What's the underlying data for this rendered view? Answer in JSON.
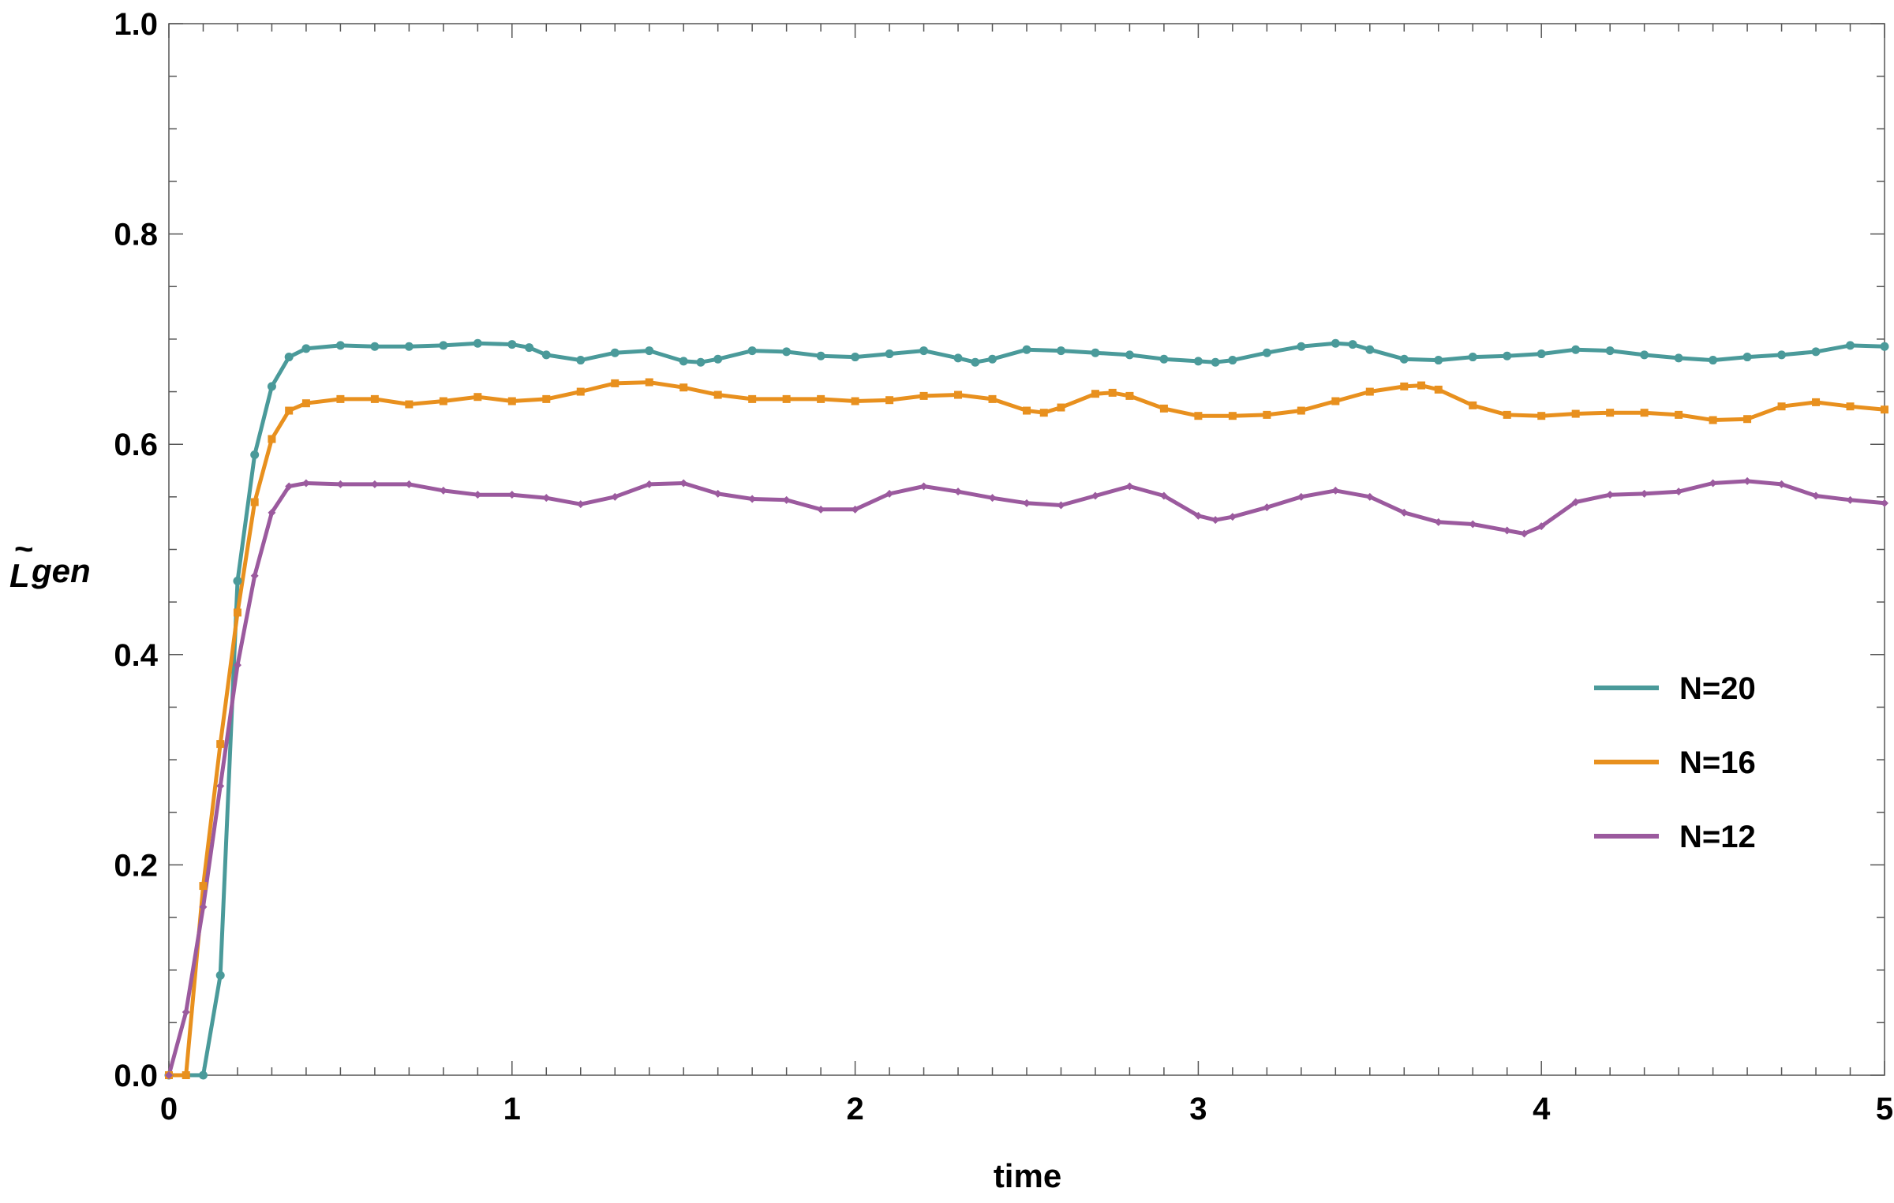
{
  "chart_data": {
    "type": "line",
    "xlabel": "time",
    "ylabel_main": "L",
    "ylabel_accent": "~",
    "ylabel_sub": "gen",
    "xlim": [
      0,
      5
    ],
    "ylim": [
      0,
      1
    ],
    "x_ticks": [
      0,
      1,
      2,
      3,
      4,
      5
    ],
    "x_tick_labels": [
      "0",
      "1",
      "2",
      "3",
      "4",
      "5"
    ],
    "y_ticks": [
      0,
      0.2,
      0.4,
      0.6,
      0.8,
      1.0
    ],
    "y_tick_labels": [
      "0.0",
      "0.2",
      "0.4",
      "0.6",
      "0.8",
      "1.0"
    ],
    "legend_position": "right",
    "series": [
      {
        "name": "N=20",
        "color": "#4a9a9a",
        "marker": "circle",
        "x": [
          0,
          0.1,
          0.15,
          0.2,
          0.25,
          0.3,
          0.35,
          0.4,
          0.5,
          0.6,
          0.7,
          0.8,
          0.9,
          1.0,
          1.05,
          1.1,
          1.2,
          1.3,
          1.4,
          1.5,
          1.55,
          1.6,
          1.7,
          1.8,
          1.9,
          2.0,
          2.1,
          2.2,
          2.3,
          2.35,
          2.4,
          2.5,
          2.6,
          2.7,
          2.8,
          2.9,
          3.0,
          3.05,
          3.1,
          3.2,
          3.3,
          3.4,
          3.45,
          3.5,
          3.6,
          3.7,
          3.8,
          3.9,
          4.0,
          4.1,
          4.2,
          4.3,
          4.4,
          4.5,
          4.6,
          4.7,
          4.8,
          4.9,
          5.0
        ],
        "y": [
          0.0,
          0.0,
          0.095,
          0.47,
          0.59,
          0.655,
          0.683,
          0.691,
          0.694,
          0.693,
          0.693,
          0.694,
          0.696,
          0.695,
          0.692,
          0.685,
          0.68,
          0.687,
          0.689,
          0.679,
          0.678,
          0.681,
          0.689,
          0.688,
          0.684,
          0.683,
          0.686,
          0.689,
          0.682,
          0.678,
          0.681,
          0.69,
          0.689,
          0.687,
          0.685,
          0.681,
          0.679,
          0.678,
          0.68,
          0.687,
          0.693,
          0.696,
          0.695,
          0.69,
          0.681,
          0.68,
          0.683,
          0.684,
          0.686,
          0.69,
          0.689,
          0.685,
          0.682,
          0.68,
          0.683,
          0.685,
          0.688,
          0.694,
          0.693
        ]
      },
      {
        "name": "N=16",
        "color": "#e8901e",
        "marker": "square",
        "x": [
          0,
          0.05,
          0.1,
          0.15,
          0.2,
          0.25,
          0.3,
          0.35,
          0.4,
          0.5,
          0.6,
          0.7,
          0.8,
          0.9,
          1.0,
          1.1,
          1.2,
          1.3,
          1.4,
          1.5,
          1.6,
          1.7,
          1.8,
          1.9,
          2.0,
          2.1,
          2.2,
          2.3,
          2.4,
          2.5,
          2.55,
          2.6,
          2.7,
          2.75,
          2.8,
          2.9,
          3.0,
          3.1,
          3.2,
          3.3,
          3.4,
          3.5,
          3.6,
          3.65,
          3.7,
          3.8,
          3.9,
          4.0,
          4.1,
          4.2,
          4.3,
          4.4,
          4.5,
          4.6,
          4.7,
          4.8,
          4.9,
          5.0
        ],
        "y": [
          0.0,
          0.0,
          0.18,
          0.315,
          0.44,
          0.545,
          0.605,
          0.632,
          0.639,
          0.643,
          0.643,
          0.638,
          0.641,
          0.645,
          0.641,
          0.643,
          0.65,
          0.658,
          0.659,
          0.654,
          0.647,
          0.643,
          0.643,
          0.643,
          0.641,
          0.642,
          0.646,
          0.647,
          0.643,
          0.632,
          0.63,
          0.635,
          0.648,
          0.649,
          0.646,
          0.634,
          0.627,
          0.627,
          0.628,
          0.632,
          0.641,
          0.65,
          0.655,
          0.656,
          0.652,
          0.637,
          0.628,
          0.627,
          0.629,
          0.63,
          0.63,
          0.628,
          0.623,
          0.624,
          0.636,
          0.64,
          0.636,
          0.633
        ]
      },
      {
        "name": "N=12",
        "color": "#9b5a9e",
        "marker": "diamond",
        "x": [
          0,
          0.05,
          0.1,
          0.15,
          0.2,
          0.25,
          0.3,
          0.35,
          0.4,
          0.5,
          0.6,
          0.7,
          0.8,
          0.9,
          1.0,
          1.1,
          1.2,
          1.3,
          1.4,
          1.5,
          1.6,
          1.7,
          1.8,
          1.9,
          2.0,
          2.1,
          2.2,
          2.3,
          2.4,
          2.5,
          2.6,
          2.7,
          2.8,
          2.9,
          3.0,
          3.05,
          3.1,
          3.2,
          3.3,
          3.4,
          3.5,
          3.6,
          3.7,
          3.8,
          3.9,
          3.95,
          4.0,
          4.1,
          4.2,
          4.3,
          4.4,
          4.5,
          4.6,
          4.7,
          4.8,
          4.9,
          5.0
        ],
        "y": [
          0.0,
          0.06,
          0.16,
          0.275,
          0.39,
          0.475,
          0.535,
          0.56,
          0.563,
          0.562,
          0.562,
          0.562,
          0.556,
          0.552,
          0.552,
          0.549,
          0.543,
          0.55,
          0.562,
          0.563,
          0.553,
          0.548,
          0.547,
          0.538,
          0.538,
          0.553,
          0.56,
          0.555,
          0.549,
          0.544,
          0.542,
          0.551,
          0.56,
          0.551,
          0.532,
          0.528,
          0.531,
          0.54,
          0.55,
          0.556,
          0.55,
          0.535,
          0.526,
          0.524,
          0.518,
          0.515,
          0.522,
          0.545,
          0.552,
          0.553,
          0.555,
          0.563,
          0.565,
          0.562,
          0.551,
          0.547,
          0.544
        ]
      }
    ]
  }
}
